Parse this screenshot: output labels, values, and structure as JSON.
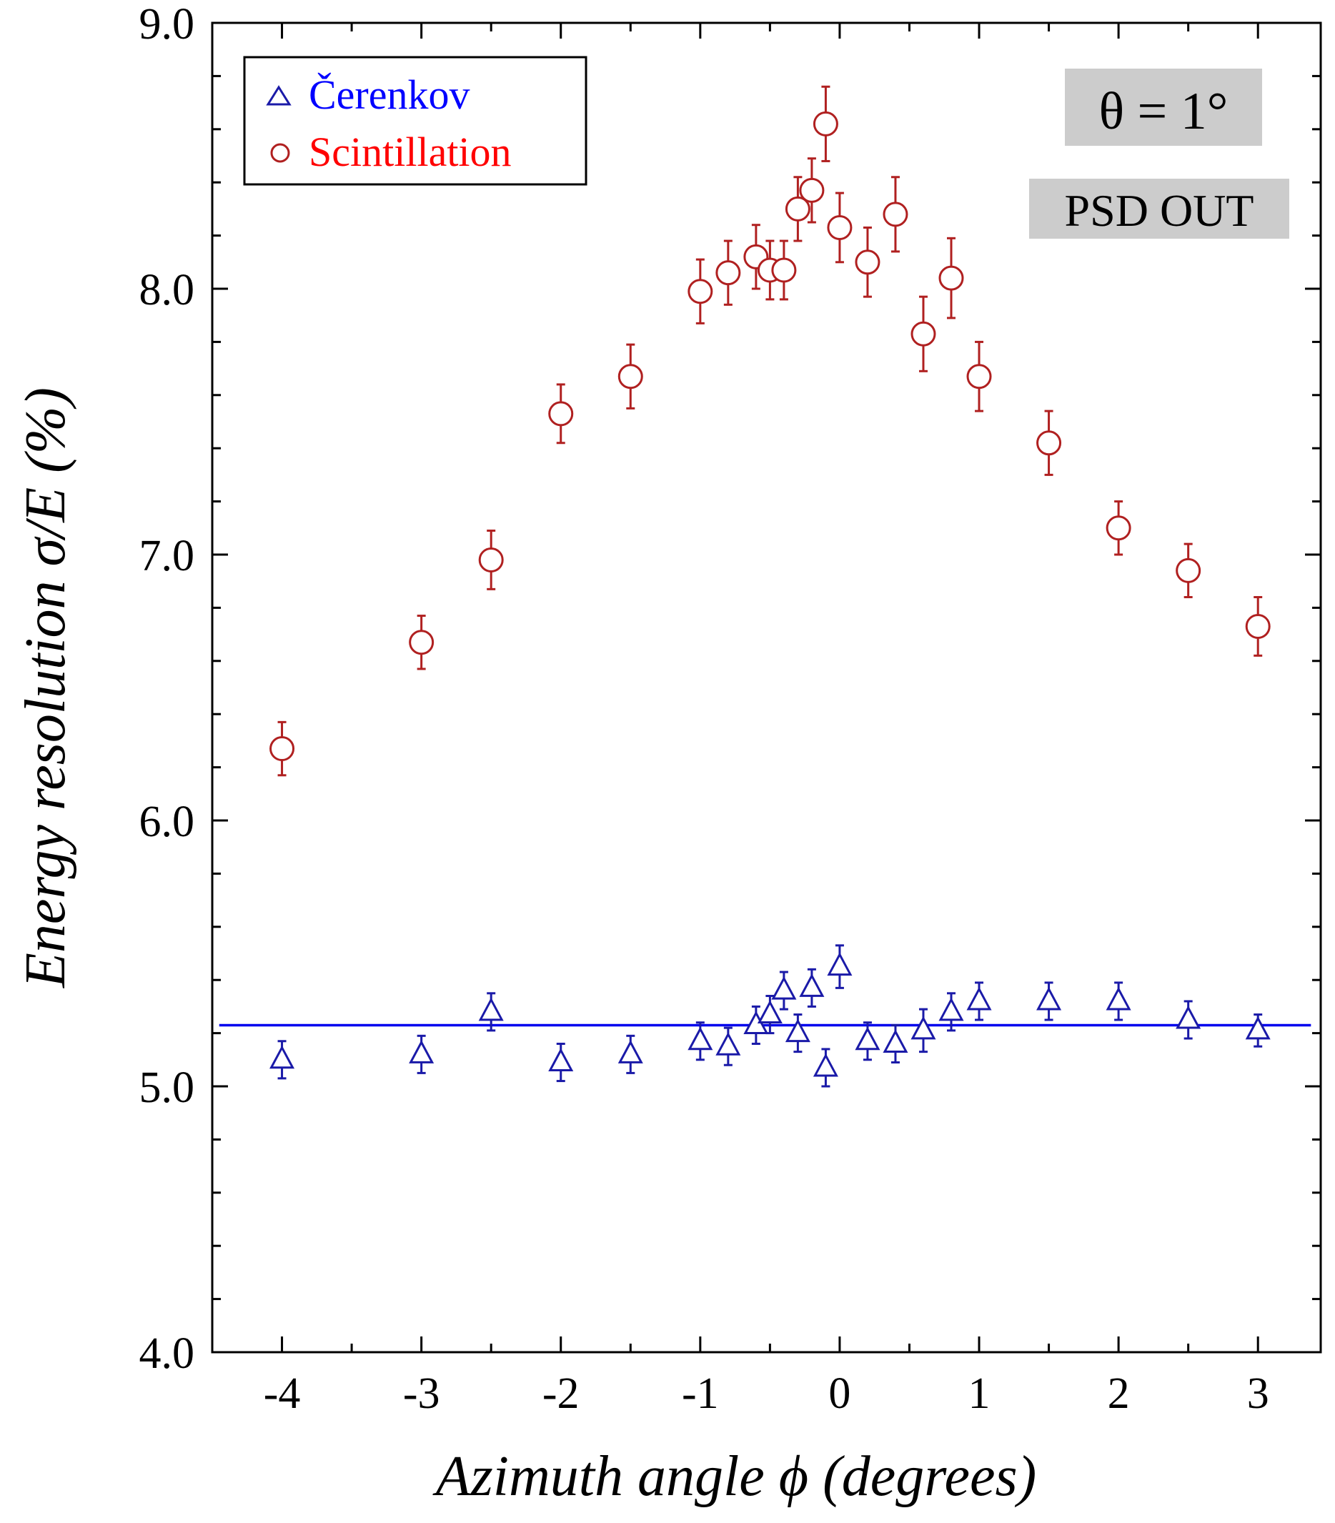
{
  "chart_data": {
    "type": "scatter",
    "xlabel": "Azimuth angle ϕ (degrees)",
    "ylabel": "Energy resolution σ/E (%)",
    "xlim": [
      -4.5,
      3.45
    ],
    "ylim": [
      4.0,
      9.0
    ],
    "x_ticks": [
      -4,
      -3,
      -2,
      -1,
      0,
      1,
      2,
      3
    ],
    "x_tick_labels": [
      "-4",
      "-3",
      "-2",
      "-1",
      "0",
      "1",
      "2",
      "3"
    ],
    "y_ticks": [
      4.0,
      5.0,
      6.0,
      7.0,
      8.0,
      9.0
    ],
    "y_tick_labels": [
      "4.0",
      "5.0",
      "6.0",
      "7.0",
      "8.0",
      "9.0"
    ],
    "legend_position": "top-left",
    "series": [
      {
        "name": "Čerenkov",
        "marker": "triangle",
        "color": "#1a1aa8",
        "legend_color": "#0000ff",
        "x": [
          -4,
          -3,
          -2.5,
          -2,
          -1.5,
          -1,
          -0.8,
          -0.6,
          -0.5,
          -0.4,
          -0.3,
          -0.2,
          -0.1,
          0,
          0.2,
          0.4,
          0.6,
          0.8,
          1,
          1.5,
          2,
          2.5,
          3
        ],
        "y": [
          5.1,
          5.12,
          5.28,
          5.09,
          5.12,
          5.17,
          5.15,
          5.23,
          5.27,
          5.36,
          5.2,
          5.37,
          5.07,
          5.45,
          5.17,
          5.16,
          5.21,
          5.28,
          5.32,
          5.32,
          5.32,
          5.25,
          5.21
        ],
        "yerr": [
          0.07,
          0.07,
          0.07,
          0.07,
          0.07,
          0.07,
          0.07,
          0.07,
          0.07,
          0.07,
          0.07,
          0.07,
          0.07,
          0.08,
          0.07,
          0.07,
          0.08,
          0.07,
          0.07,
          0.07,
          0.07,
          0.07,
          0.06
        ],
        "fit_line_y": 5.23
      },
      {
        "name": "Scintillation",
        "marker": "circle",
        "color": "#b02020",
        "legend_color": "#ff0000",
        "x": [
          -4,
          -3,
          -2.5,
          -2,
          -1.5,
          -1,
          -0.8,
          -0.6,
          -0.5,
          -0.4,
          -0.3,
          -0.2,
          -0.1,
          0,
          0.2,
          0.4,
          0.6,
          0.8,
          1,
          1.5,
          2,
          2.5,
          3
        ],
        "y": [
          6.27,
          6.67,
          6.98,
          7.53,
          7.67,
          7.99,
          8.06,
          8.12,
          8.07,
          8.07,
          8.3,
          8.37,
          8.62,
          8.23,
          8.1,
          8.28,
          7.83,
          8.04,
          7.67,
          7.42,
          7.1,
          6.94,
          6.73
        ],
        "yerr": [
          0.1,
          0.1,
          0.11,
          0.11,
          0.12,
          0.12,
          0.12,
          0.12,
          0.11,
          0.11,
          0.12,
          0.12,
          0.14,
          0.13,
          0.13,
          0.14,
          0.14,
          0.15,
          0.13,
          0.12,
          0.1,
          0.1,
          0.11
        ]
      }
    ],
    "annotations": {
      "theta": "θ = 1°",
      "psd": "PSD OUT"
    },
    "colors": {
      "annotation_background": "#cccccc",
      "fit_line": "#0000ee"
    }
  }
}
